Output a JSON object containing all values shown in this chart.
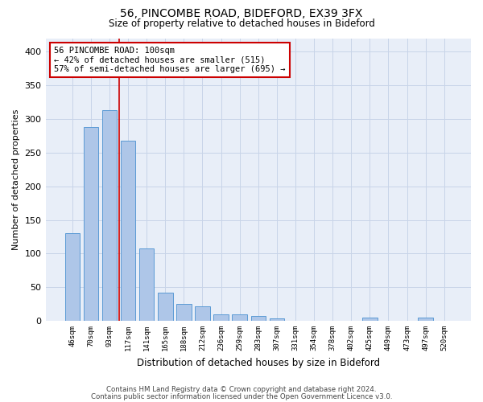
{
  "title_line1": "56, PINCOMBE ROAD, BIDEFORD, EX39 3FX",
  "title_line2": "Size of property relative to detached houses in Bideford",
  "xlabel": "Distribution of detached houses by size in Bideford",
  "ylabel": "Number of detached properties",
  "footer_line1": "Contains HM Land Registry data © Crown copyright and database right 2024.",
  "footer_line2": "Contains public sector information licensed under the Open Government Licence v3.0.",
  "bar_color": "#aec6e8",
  "bar_edgecolor": "#5b9bd5",
  "grid_color": "#c8d4e8",
  "bg_color": "#e8eef8",
  "annotation_box_color": "#cc0000",
  "annotation_text": "56 PINCOMBE ROAD: 100sqm\n← 42% of detached houses are smaller (515)\n57% of semi-detached houses are larger (695) →",
  "categories": [
    "46sqm",
    "70sqm",
    "93sqm",
    "117sqm",
    "141sqm",
    "165sqm",
    "188sqm",
    "212sqm",
    "236sqm",
    "259sqm",
    "283sqm",
    "307sqm",
    "331sqm",
    "354sqm",
    "378sqm",
    "402sqm",
    "425sqm",
    "449sqm",
    "473sqm",
    "497sqm",
    "520sqm"
  ],
  "bar_heights": [
    130,
    288,
    313,
    268,
    108,
    42,
    25,
    21,
    10,
    10,
    7,
    4,
    0,
    0,
    0,
    0,
    5,
    0,
    0,
    5,
    0
  ],
  "ylim": [
    0,
    420
  ],
  "yticks": [
    0,
    50,
    100,
    150,
    200,
    250,
    300,
    350,
    400
  ],
  "bar_width": 0.8,
  "vline_color": "#cc0000",
  "vline_x_index": 2.5
}
